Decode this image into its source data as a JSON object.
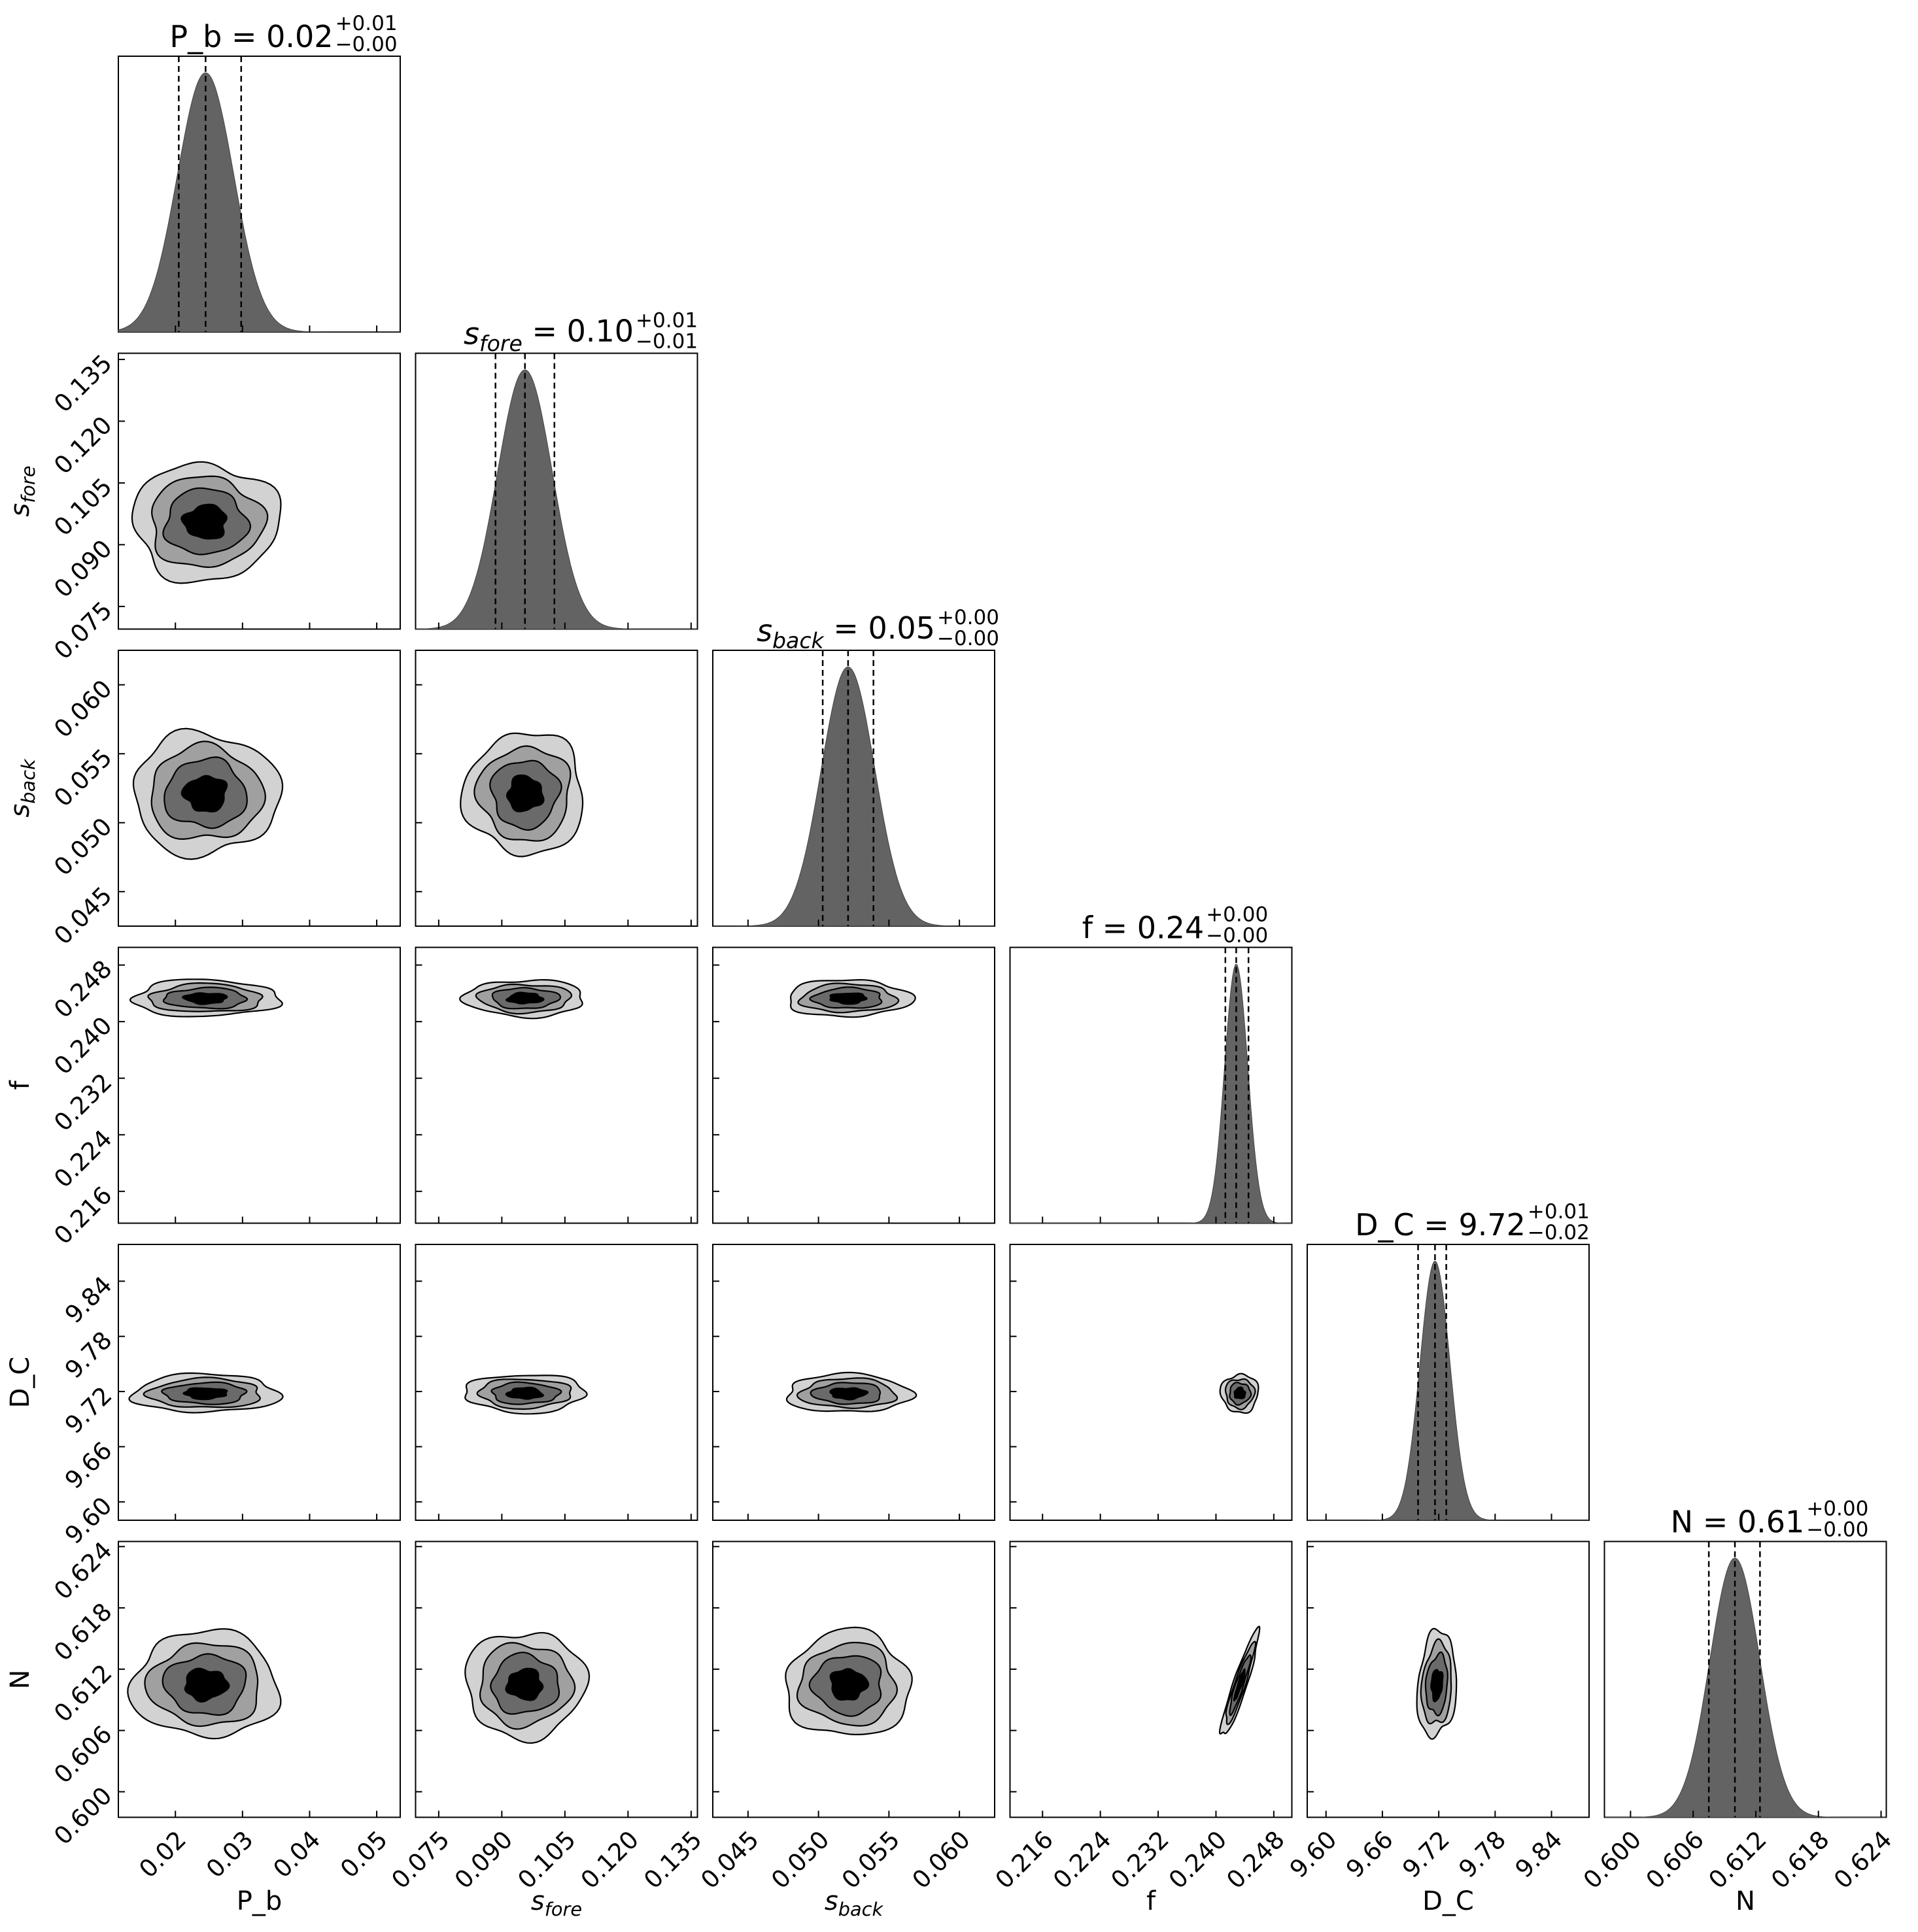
{
  "chart_data": {
    "type": "corner",
    "parameters": [
      {
        "id": "P_b",
        "label": "P_b",
        "label_math": null,
        "title_prefix": "P_b",
        "title_math": null,
        "median": "0.02",
        "upper": "+0.01",
        "lower": "−0.00",
        "ticks": [
          "0.02",
          "0.03",
          "0.04",
          "0.05"
        ],
        "range": [
          0.0115,
          0.0535
        ],
        "hist_quantiles": [
          0.0205,
          0.0245,
          0.0298
        ],
        "marginal": {
          "mean": 0.0245,
          "sd": 0.0042
        },
        "two_d": {
          "center": 0.0245,
          "sd": 0.0042
        }
      },
      {
        "id": "s_fore",
        "label": null,
        "label_math": {
          "base": "s",
          "sub": "fore"
        },
        "title_prefix": null,
        "title_math": {
          "base": "s",
          "sub": "fore"
        },
        "median": "0.10",
        "upper": "+0.01",
        "lower": "−0.01",
        "ticks": [
          "0.075",
          "0.090",
          "0.105",
          "0.120",
          "0.135"
        ],
        "range": [
          0.0695,
          0.1365
        ],
        "hist_quantiles": [
          0.0885,
          0.0955,
          0.1025
        ],
        "marginal": {
          "mean": 0.0955,
          "sd": 0.0065
        },
        "two_d": {
          "center": 0.0955,
          "sd": 0.0055
        }
      },
      {
        "id": "s_back",
        "label": null,
        "label_math": {
          "base": "s",
          "sub": "back"
        },
        "title_prefix": null,
        "title_math": {
          "base": "s",
          "sub": "back"
        },
        "median": "0.05",
        "upper": "+0.00",
        "lower": "−0.00",
        "ticks": [
          "0.045",
          "0.050",
          "0.055",
          "0.060"
        ],
        "range": [
          0.0425,
          0.0625
        ],
        "hist_quantiles": [
          0.0503,
          0.0521,
          0.0539
        ],
        "marginal": {
          "mean": 0.0521,
          "sd": 0.0019
        },
        "two_d": {
          "center": 0.0521,
          "sd": 0.0017
        }
      },
      {
        "id": "f",
        "label": "f",
        "label_math": null,
        "title_prefix": "f",
        "title_math": null,
        "median": "0.24",
        "upper": "+0.00",
        "lower": "−0.00",
        "ticks": [
          "0.216",
          "0.224",
          "0.232",
          "0.240",
          "0.248"
        ],
        "range": [
          0.2115,
          0.2505
        ],
        "hist_quantiles": [
          0.2413,
          0.2428,
          0.2445
        ],
        "marginal": {
          "mean": 0.2428,
          "sd": 0.0016
        },
        "two_d": {
          "center": 0.2433,
          "sd": 0.001
        }
      },
      {
        "id": "D_C",
        "label": "D_C",
        "label_math": null,
        "title_prefix": "D_C",
        "title_math": null,
        "median": "9.72",
        "upper": "+0.01",
        "lower": "−0.02",
        "ticks": [
          "9.60",
          "9.66",
          "9.72",
          "9.78",
          "9.84"
        ],
        "range": [
          9.58,
          9.88
        ],
        "hist_quantiles": [
          9.698,
          9.716,
          9.728
        ],
        "marginal": {
          "mean": 9.716,
          "sd": 0.016
        },
        "two_d": {
          "center": 9.718,
          "sd": 0.008
        }
      },
      {
        "id": "N",
        "label": "N",
        "label_math": null,
        "title_prefix": "N",
        "title_math": null,
        "median": "0.61",
        "upper": "+0.00",
        "lower": "−0.00",
        "ticks": [
          "0.600",
          "0.606",
          "0.612",
          "0.618",
          "0.624"
        ],
        "range": [
          0.5975,
          0.6245
        ],
        "hist_quantiles": [
          0.6075,
          0.61,
          0.6124
        ],
        "marginal": {
          "mean": 0.61,
          "sd": 0.0024
        },
        "two_d": {
          "center": 0.6105,
          "sd": 0.002
        }
      }
    ],
    "contour_levels": 4,
    "contour_fills": [
      "#d2d2d2",
      "#a0a0a0",
      "#6a6a6a",
      "#000000"
    ],
    "histogram_fill": "#636363",
    "quantile_line_style": "dashed",
    "correlations": {
      "f|N": 0.92,
      "D_C|N": 0.15
    }
  }
}
